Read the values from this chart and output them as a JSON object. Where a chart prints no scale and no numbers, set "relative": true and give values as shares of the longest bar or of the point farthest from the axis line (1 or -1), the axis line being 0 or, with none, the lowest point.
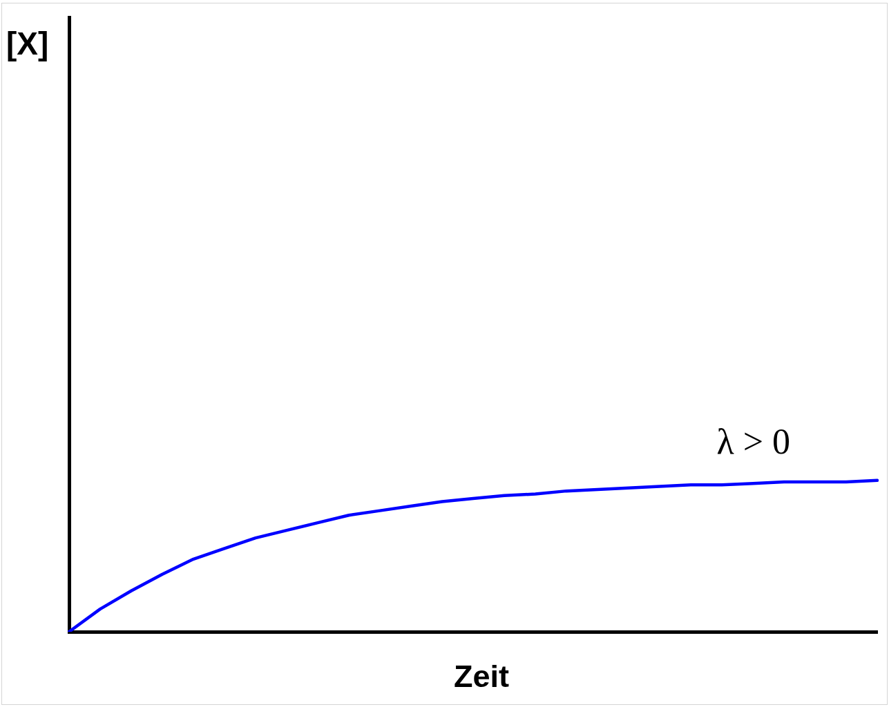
{
  "chart_data": {
    "type": "line",
    "xlabel": "Zeit",
    "annotations": [
      "[X]"
    ],
    "relative": true,
    "tick_labels": false,
    "marker": "none",
    "categories": [
      null,
      null,
      null,
      null,
      null,
      null,
      null,
      null,
      null,
      null,
      null,
      null,
      null,
      null,
      null,
      null,
      null,
      null,
      null,
      null,
      null,
      null,
      null,
      null,
      null,
      null,
      null
    ],
    "series": [
      {
        "name": "λ > 0",
        "color": "#0000ff",
        "values": [
          0,
          0.15,
          0.27,
          0.38,
          0.48,
          0.55,
          0.62,
          0.67,
          0.72,
          0.77,
          0.8,
          0.83,
          0.86,
          0.88,
          0.9,
          0.91,
          0.93,
          0.94,
          0.95,
          0.96,
          0.97,
          0.97,
          0.98,
          0.99,
          0.99,
          0.99,
          1
        ]
      }
    ]
  }
}
